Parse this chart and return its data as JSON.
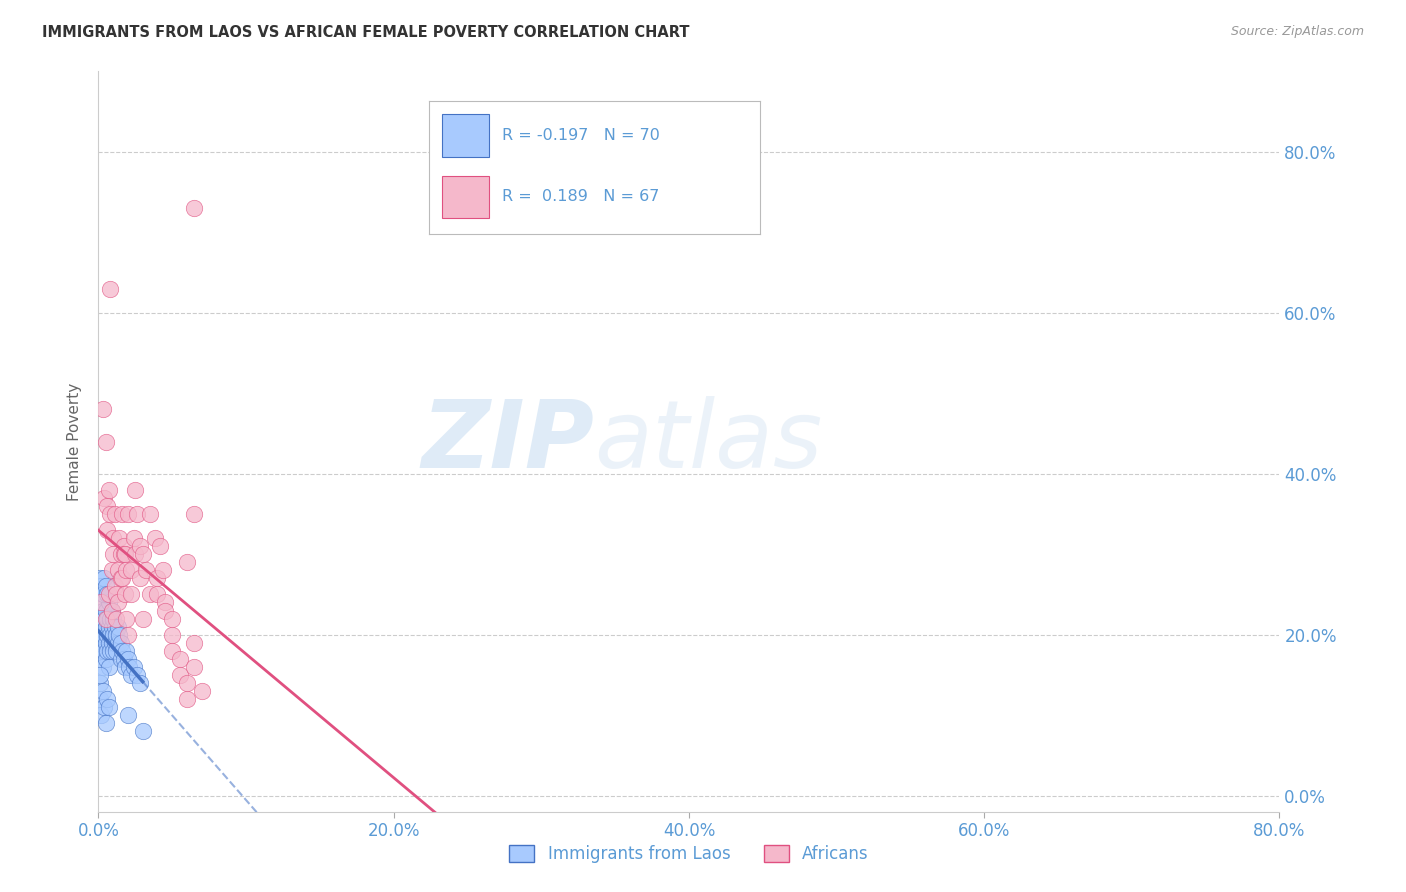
{
  "title": "IMMIGRANTS FROM LAOS VS AFRICAN FEMALE POVERTY CORRELATION CHART",
  "source": "Source: ZipAtlas.com",
  "ylabel": "Female Poverty",
  "legend_label1": "Immigrants from Laos",
  "legend_label2": "Africans",
  "R1": -0.197,
  "N1": 70,
  "R2": 0.189,
  "N2": 67,
  "color_blue": "#A8CAFE",
  "color_pink": "#F5B8CB",
  "color_line_blue": "#4472C4",
  "color_line_pink": "#E05080",
  "color_axis_labels": "#5B9BD5",
  "xlim": [
    0.0,
    0.8
  ],
  "ylim": [
    -0.02,
    0.9
  ],
  "yticks": [
    0.0,
    0.2,
    0.4,
    0.6,
    0.8
  ],
  "xticks": [
    0.0,
    0.2,
    0.4,
    0.6,
    0.8
  ],
  "watermark": "ZIPatlas",
  "background_color": "#FFFFFF",
  "blue_points": [
    [
      0.001,
      0.14
    ],
    [
      0.001,
      0.19
    ],
    [
      0.001,
      0.22
    ],
    [
      0.002,
      0.2
    ],
    [
      0.002,
      0.18
    ],
    [
      0.002,
      0.24
    ],
    [
      0.002,
      0.17
    ],
    [
      0.003,
      0.21
    ],
    [
      0.003,
      0.19
    ],
    [
      0.003,
      0.23
    ],
    [
      0.003,
      0.16
    ],
    [
      0.004,
      0.2
    ],
    [
      0.004,
      0.22
    ],
    [
      0.004,
      0.18
    ],
    [
      0.004,
      0.25
    ],
    [
      0.005,
      0.21
    ],
    [
      0.005,
      0.19
    ],
    [
      0.005,
      0.23
    ],
    [
      0.005,
      0.17
    ],
    [
      0.006,
      0.2
    ],
    [
      0.006,
      0.22
    ],
    [
      0.006,
      0.18
    ],
    [
      0.007,
      0.21
    ],
    [
      0.007,
      0.19
    ],
    [
      0.007,
      0.24
    ],
    [
      0.007,
      0.16
    ],
    [
      0.008,
      0.2
    ],
    [
      0.008,
      0.22
    ],
    [
      0.008,
      0.18
    ],
    [
      0.009,
      0.21
    ],
    [
      0.009,
      0.19
    ],
    [
      0.009,
      0.23
    ],
    [
      0.01,
      0.2
    ],
    [
      0.01,
      0.18
    ],
    [
      0.01,
      0.22
    ],
    [
      0.011,
      0.19
    ],
    [
      0.011,
      0.21
    ],
    [
      0.012,
      0.2
    ],
    [
      0.012,
      0.18
    ],
    [
      0.013,
      0.19
    ],
    [
      0.013,
      0.21
    ],
    [
      0.014,
      0.2
    ],
    [
      0.015,
      0.19
    ],
    [
      0.015,
      0.17
    ],
    [
      0.016,
      0.18
    ],
    [
      0.017,
      0.17
    ],
    [
      0.018,
      0.16
    ],
    [
      0.019,
      0.18
    ],
    [
      0.02,
      0.17
    ],
    [
      0.021,
      0.16
    ],
    [
      0.022,
      0.15
    ],
    [
      0.024,
      0.16
    ],
    [
      0.026,
      0.15
    ],
    [
      0.028,
      0.14
    ],
    [
      0.001,
      0.27
    ],
    [
      0.002,
      0.26
    ],
    [
      0.003,
      0.25
    ],
    [
      0.004,
      0.27
    ],
    [
      0.005,
      0.26
    ],
    [
      0.006,
      0.25
    ],
    [
      0.001,
      0.12
    ],
    [
      0.002,
      0.1
    ],
    [
      0.003,
      0.13
    ],
    [
      0.004,
      0.11
    ],
    [
      0.005,
      0.09
    ],
    [
      0.006,
      0.12
    ],
    [
      0.007,
      0.11
    ],
    [
      0.02,
      0.1
    ],
    [
      0.03,
      0.08
    ],
    [
      0.001,
      0.15
    ]
  ],
  "pink_points": [
    [
      0.002,
      0.24
    ],
    [
      0.003,
      0.48
    ],
    [
      0.004,
      0.37
    ],
    [
      0.005,
      0.44
    ],
    [
      0.005,
      0.22
    ],
    [
      0.006,
      0.36
    ],
    [
      0.006,
      0.33
    ],
    [
      0.007,
      0.38
    ],
    [
      0.007,
      0.25
    ],
    [
      0.008,
      0.35
    ],
    [
      0.008,
      0.63
    ],
    [
      0.009,
      0.28
    ],
    [
      0.009,
      0.23
    ],
    [
      0.01,
      0.32
    ],
    [
      0.01,
      0.3
    ],
    [
      0.011,
      0.35
    ],
    [
      0.011,
      0.26
    ],
    [
      0.012,
      0.22
    ],
    [
      0.012,
      0.25
    ],
    [
      0.013,
      0.28
    ],
    [
      0.013,
      0.24
    ],
    [
      0.014,
      0.32
    ],
    [
      0.015,
      0.3
    ],
    [
      0.015,
      0.27
    ],
    [
      0.016,
      0.35
    ],
    [
      0.016,
      0.27
    ],
    [
      0.017,
      0.31
    ],
    [
      0.017,
      0.3
    ],
    [
      0.018,
      0.3
    ],
    [
      0.018,
      0.25
    ],
    [
      0.019,
      0.28
    ],
    [
      0.019,
      0.22
    ],
    [
      0.02,
      0.35
    ],
    [
      0.02,
      0.2
    ],
    [
      0.022,
      0.25
    ],
    [
      0.022,
      0.28
    ],
    [
      0.024,
      0.32
    ],
    [
      0.025,
      0.3
    ],
    [
      0.025,
      0.38
    ],
    [
      0.026,
      0.35
    ],
    [
      0.028,
      0.27
    ],
    [
      0.028,
      0.31
    ],
    [
      0.03,
      0.3
    ],
    [
      0.03,
      0.22
    ],
    [
      0.032,
      0.28
    ],
    [
      0.035,
      0.35
    ],
    [
      0.035,
      0.25
    ],
    [
      0.038,
      0.32
    ],
    [
      0.04,
      0.27
    ],
    [
      0.04,
      0.25
    ],
    [
      0.042,
      0.31
    ],
    [
      0.044,
      0.28
    ],
    [
      0.045,
      0.24
    ],
    [
      0.045,
      0.23
    ],
    [
      0.05,
      0.2
    ],
    [
      0.05,
      0.22
    ],
    [
      0.05,
      0.18
    ],
    [
      0.055,
      0.17
    ],
    [
      0.055,
      0.15
    ],
    [
      0.06,
      0.12
    ],
    [
      0.06,
      0.29
    ],
    [
      0.06,
      0.14
    ],
    [
      0.065,
      0.73
    ],
    [
      0.065,
      0.19
    ],
    [
      0.065,
      0.16
    ],
    [
      0.065,
      0.35
    ],
    [
      0.07,
      0.13
    ]
  ]
}
